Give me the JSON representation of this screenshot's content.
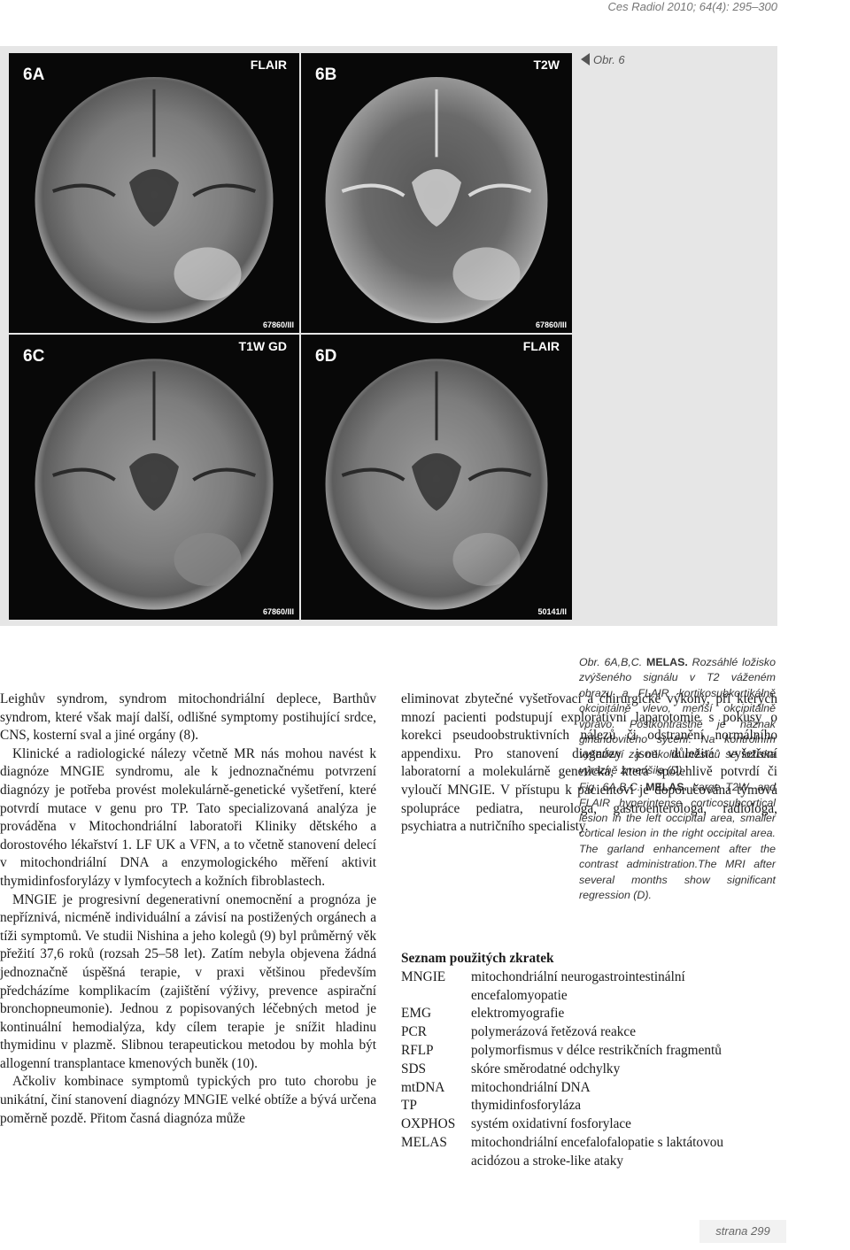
{
  "header": {
    "citation": "Ces Radiol 2010; 64(4): 295–300"
  },
  "figure": {
    "marker": "Obr. 6",
    "panels": [
      {
        "id": "6A",
        "sequence": "FLAIR",
        "code": "67860/III"
      },
      {
        "id": "6B",
        "sequence": "T2W",
        "code": "67860/III"
      },
      {
        "id": "6C",
        "sequence": "T1W GD",
        "code": "67860/III"
      },
      {
        "id": "6D",
        "sequence": "FLAIR",
        "code": "50141/II"
      }
    ],
    "caption_cz": {
      "prefix": "Obr. 6A,B,C. ",
      "bold": "MELAS.",
      "text": " Rozsáhlé ložisko zvýšeného signálu v T2 váženém obrazu a FLAIR kortikosubkortikálně okcipitálně vlevo, menší okcipitálně vpravo. Postkontrastně je náznak girlandovitého sycení. Na kontrolním vyšetření za několik měsíců se ložiska výrazně zmenšila (D)."
    },
    "caption_en": {
      "prefix": "Fig. 6A,B,C. ",
      "bold": "MELAS.",
      "text": " Large T2W- and FLAIR hyperintense corticosubcortical lesion in the left occipital area, smaller cortical lesion in the right occipital area. The garland enhancement after the contrast administration.The MRI after several months show significant regression (D)."
    }
  },
  "body": {
    "left": [
      "Leighův syndrom, syndrom mitochondriální deplece, Barthův syndrom, které však mají další, odlišné symptomy postihující srdce, CNS, kosterní sval a jiné orgány (8).",
      "Klinické a radiologické nálezy včetně MR nás mohou navést k diagnóze MNGIE syndromu, ale k jednoznačnému potvrzení diagnózy je potřeba provést molekulárně-genetické vyšetření, které potvrdí mutace v genu pro TP. Tato specializovaná analýza je prováděna v Mitochondriální laboratoři Kliniky dětského a dorostového lékařství 1. LF UK a VFN, a to včetně stanovení delecí v mitochondriální DNA a enzymologického měření aktivit thymidinfosforylázy v lymfocytech a kožních fibroblastech.",
      "MNGIE je progresivní degenerativní onemocnění a prognóza je nepříznivá, nicméně individuální a závisí na postižených orgánech a tíži symptomů. Ve studii Nishina a jeho kolegů (9) byl průměrný věk přežití 37,6 roků (rozsah 25–58 let). Zatím nebyla objevena žádná jednoznačně úspěšná terapie, v praxi většinou především předcházíme komplikacím (zajištění výživy, prevence aspirační bronchopneumonie). Jednou z popisovaných léčebných metod je kontinuální hemodialýza, kdy cílem terapie je snížit hladinu thymidinu v plazmě. Slibnou terapeutickou metodou by mohla být allogenní transplantace kmenových buněk (10).",
      "Ačkoliv kombinace symptomů typických pro tuto chorobu je unikátní, činí stanovení diagnózy MNGIE velké obtíže a bývá určena poměrně pozdě. Přitom časná diagnóza může"
    ],
    "right": [
      "eliminovat zbytečné vyšetřovací a chirurgické výkony, při kterých mnozí pacienti podstupují explorativní laparotomie s pokusy o korekci pseudoobstruktivních nálezů či odstranění normálního appendixu. Pro stanovení diagnózy jsou důležitá vyšetření laboratorní a molekulárně genetická, která spolehlivě potvrdí či vyloučí MNGIE. V přístupu k pacientovi je doporučována týmová spolupráce pediatra, neurologa, gastroenterologa, radiologa, psychiatra a nutričního specialisty."
    ]
  },
  "abbreviations": {
    "title": "Seznam použitých zkratek",
    "rows": [
      [
        "MNGIE",
        "mitochondriální neurogastrointestinální encefalomyopatie"
      ],
      [
        "EMG",
        "elektromyografie"
      ],
      [
        "PCR",
        "polymerázová řetězová reakce"
      ],
      [
        "RFLP",
        "polymorfismus v délce restrikčních fragmentů"
      ],
      [
        "SDS",
        "skóre směrodatné odchylky"
      ],
      [
        "mtDNA",
        "mitochondriální DNA"
      ],
      [
        "TP",
        "thymidinfosforyláza"
      ],
      [
        "OXPHOS",
        "systém oxidativní fosforylace"
      ],
      [
        "MELAS",
        "mitochondriální encefalofalopatie s laktátovou acidózou a stroke-like ataky"
      ]
    ]
  },
  "footer": {
    "page": "strana 299"
  }
}
